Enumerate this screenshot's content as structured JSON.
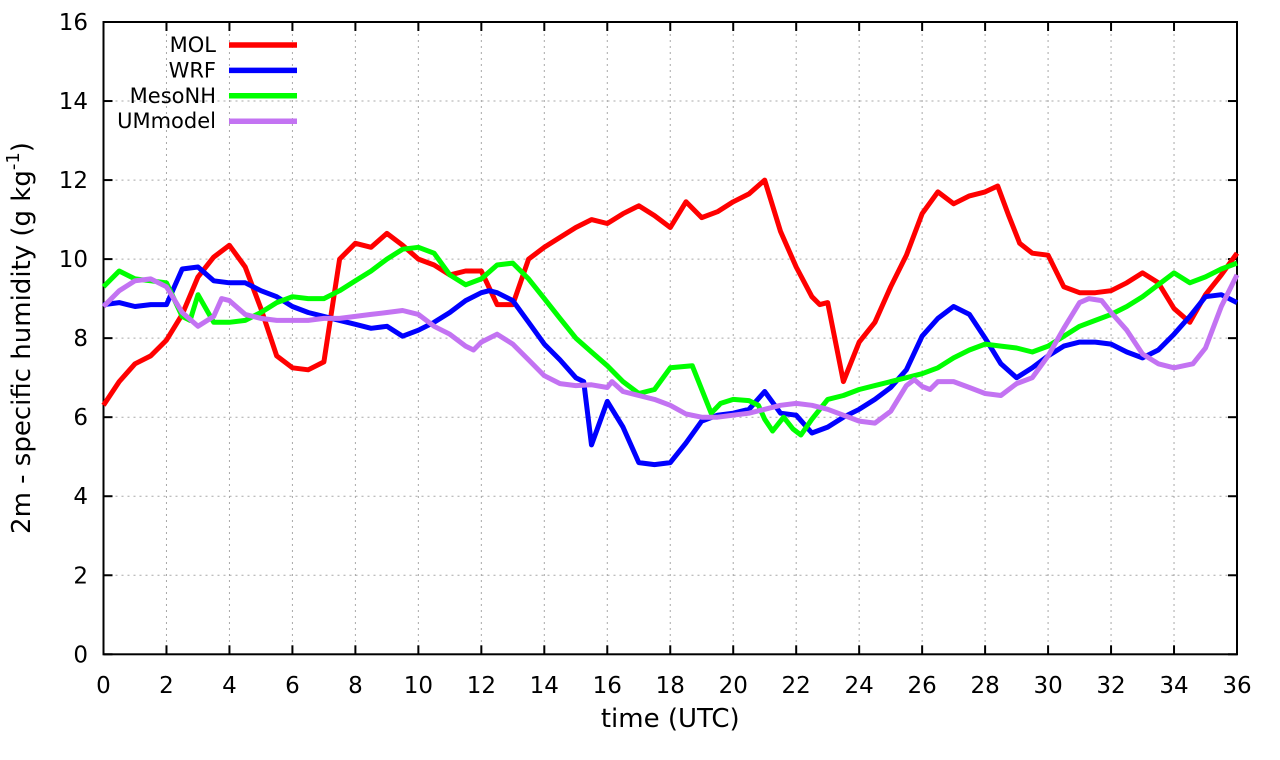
{
  "figure": {
    "background": "#ffffff",
    "border_color": "#000000",
    "grid_color": "#a8a8a8"
  },
  "chart_data": {
    "type": "line",
    "title": "",
    "xlabel": "time (UTC)",
    "ylabel_pre": "2m - specific humidity (g kg",
    "ylabel_sup": "-1",
    "ylabel_post": ")",
    "x_axis": {
      "min": 0,
      "max": 36,
      "tick_step": 2,
      "tick_labels": [
        "0",
        "2",
        "4",
        "6",
        "8",
        "10",
        "12",
        "14",
        "16",
        "18",
        "20",
        "22",
        "24",
        "26",
        "28",
        "30",
        "32",
        "34",
        "36"
      ]
    },
    "y_axis": {
      "min": 0,
      "max": 16,
      "tick_step": 2,
      "tick_labels": [
        "0",
        "2",
        "4",
        "6",
        "8",
        "10",
        "12",
        "14",
        "16"
      ]
    },
    "grid": true,
    "legend_position": "top-left-inside",
    "series": [
      {
        "name": "MOL",
        "color": "#ff0000",
        "points": [
          [
            0,
            6.3
          ],
          [
            0.5,
            6.9
          ],
          [
            1,
            7.35
          ],
          [
            1.5,
            7.55
          ],
          [
            2,
            7.95
          ],
          [
            2.5,
            8.6
          ],
          [
            3,
            9.55
          ],
          [
            3.5,
            10.05
          ],
          [
            4,
            10.35
          ],
          [
            4.5,
            9.8
          ],
          [
            5,
            8.75
          ],
          [
            5.5,
            7.55
          ],
          [
            6,
            7.25
          ],
          [
            6.5,
            7.2
          ],
          [
            7,
            7.4
          ],
          [
            7.5,
            10.0
          ],
          [
            8,
            10.4
          ],
          [
            8.5,
            10.3
          ],
          [
            9,
            10.65
          ],
          [
            9.5,
            10.35
          ],
          [
            10,
            10.0
          ],
          [
            10.5,
            9.85
          ],
          [
            11,
            9.6
          ],
          [
            11.5,
            9.7
          ],
          [
            12,
            9.7
          ],
          [
            12.5,
            8.85
          ],
          [
            13,
            8.85
          ],
          [
            13.5,
            10.0
          ],
          [
            14,
            10.3
          ],
          [
            14.5,
            10.55
          ],
          [
            15,
            10.8
          ],
          [
            15.5,
            11.0
          ],
          [
            16,
            10.9
          ],
          [
            16.5,
            11.15
          ],
          [
            17,
            11.35
          ],
          [
            17.5,
            11.1
          ],
          [
            18,
            10.8
          ],
          [
            18.5,
            11.45
          ],
          [
            19,
            11.05
          ],
          [
            19.5,
            11.2
          ],
          [
            20,
            11.45
          ],
          [
            20.5,
            11.65
          ],
          [
            21,
            12.0
          ],
          [
            21.5,
            10.7
          ],
          [
            22,
            9.8
          ],
          [
            22.5,
            9.05
          ],
          [
            22.75,
            8.85
          ],
          [
            23,
            8.9
          ],
          [
            23.5,
            6.9
          ],
          [
            24,
            7.9
          ],
          [
            24.5,
            8.4
          ],
          [
            25,
            9.3
          ],
          [
            25.5,
            10.1
          ],
          [
            26,
            11.15
          ],
          [
            26.5,
            11.7
          ],
          [
            27,
            11.4
          ],
          [
            27.5,
            11.6
          ],
          [
            28,
            11.7
          ],
          [
            28.4,
            11.85
          ],
          [
            28.75,
            11.1
          ],
          [
            29.1,
            10.4
          ],
          [
            29.5,
            10.15
          ],
          [
            30,
            10.1
          ],
          [
            30.5,
            9.3
          ],
          [
            31,
            9.15
          ],
          [
            31.5,
            9.15
          ],
          [
            32,
            9.2
          ],
          [
            32.5,
            9.4
          ],
          [
            33,
            9.65
          ],
          [
            33.5,
            9.4
          ],
          [
            34,
            8.75
          ],
          [
            34.5,
            8.4
          ],
          [
            35,
            9.1
          ],
          [
            35.5,
            9.6
          ],
          [
            36,
            10.15
          ]
        ]
      },
      {
        "name": "WRF",
        "color": "#0000ff",
        "points": [
          [
            0,
            8.85
          ],
          [
            0.5,
            8.9
          ],
          [
            1,
            8.8
          ],
          [
            1.5,
            8.85
          ],
          [
            2,
            8.85
          ],
          [
            2.5,
            9.75
          ],
          [
            3,
            9.8
          ],
          [
            3.5,
            9.45
          ],
          [
            4,
            9.4
          ],
          [
            4.5,
            9.4
          ],
          [
            5,
            9.2
          ],
          [
            5.5,
            9.05
          ],
          [
            6,
            8.8
          ],
          [
            6.5,
            8.65
          ],
          [
            7,
            8.55
          ],
          [
            7.5,
            8.45
          ],
          [
            8,
            8.35
          ],
          [
            8.5,
            8.25
          ],
          [
            9,
            8.3
          ],
          [
            9.5,
            8.05
          ],
          [
            10,
            8.2
          ],
          [
            10.5,
            8.4
          ],
          [
            11,
            8.65
          ],
          [
            11.5,
            8.95
          ],
          [
            12,
            9.15
          ],
          [
            12.25,
            9.2
          ],
          [
            12.5,
            9.15
          ],
          [
            13,
            8.95
          ],
          [
            13.5,
            8.4
          ],
          [
            14,
            7.85
          ],
          [
            14.5,
            7.45
          ],
          [
            15,
            7.0
          ],
          [
            15.25,
            6.9
          ],
          [
            15.5,
            5.3
          ],
          [
            16,
            6.4
          ],
          [
            16.5,
            5.75
          ],
          [
            17,
            4.85
          ],
          [
            17.5,
            4.8
          ],
          [
            18,
            4.85
          ],
          [
            18.5,
            5.35
          ],
          [
            19,
            5.9
          ],
          [
            19.5,
            6.05
          ],
          [
            20,
            6.1
          ],
          [
            20.5,
            6.2
          ],
          [
            21,
            6.65
          ],
          [
            21.5,
            6.1
          ],
          [
            22,
            6.05
          ],
          [
            22.5,
            5.6
          ],
          [
            23,
            5.75
          ],
          [
            23.5,
            6.0
          ],
          [
            24,
            6.2
          ],
          [
            24.5,
            6.45
          ],
          [
            25,
            6.75
          ],
          [
            25.5,
            7.2
          ],
          [
            26,
            8.05
          ],
          [
            26.5,
            8.5
          ],
          [
            27,
            8.8
          ],
          [
            27.5,
            8.6
          ],
          [
            28,
            8.0
          ],
          [
            28.5,
            7.35
          ],
          [
            29,
            7.0
          ],
          [
            29.5,
            7.25
          ],
          [
            30,
            7.55
          ],
          [
            30.5,
            7.8
          ],
          [
            31,
            7.9
          ],
          [
            31.5,
            7.9
          ],
          [
            32,
            7.85
          ],
          [
            32.5,
            7.65
          ],
          [
            33,
            7.5
          ],
          [
            33.5,
            7.7
          ],
          [
            34,
            8.1
          ],
          [
            34.5,
            8.55
          ],
          [
            35,
            9.05
          ],
          [
            35.5,
            9.1
          ],
          [
            36,
            8.9
          ]
        ]
      },
      {
        "name": "MesoNH",
        "color": "#00ff00",
        "points": [
          [
            0,
            9.3
          ],
          [
            0.5,
            9.7
          ],
          [
            1,
            9.5
          ],
          [
            1.5,
            9.45
          ],
          [
            2,
            9.4
          ],
          [
            2.5,
            8.55
          ],
          [
            2.75,
            8.45
          ],
          [
            3,
            9.1
          ],
          [
            3.5,
            8.4
          ],
          [
            4,
            8.4
          ],
          [
            4.5,
            8.45
          ],
          [
            5,
            8.65
          ],
          [
            5.5,
            8.9
          ],
          [
            6,
            9.05
          ],
          [
            6.5,
            9.0
          ],
          [
            7,
            9.0
          ],
          [
            7.5,
            9.2
          ],
          [
            8,
            9.45
          ],
          [
            8.5,
            9.7
          ],
          [
            9,
            10.0
          ],
          [
            9.5,
            10.25
          ],
          [
            10,
            10.3
          ],
          [
            10.5,
            10.15
          ],
          [
            11,
            9.6
          ],
          [
            11.5,
            9.35
          ],
          [
            12,
            9.5
          ],
          [
            12.5,
            9.85
          ],
          [
            13,
            9.9
          ],
          [
            13.5,
            9.5
          ],
          [
            14,
            9.0
          ],
          [
            14.5,
            8.5
          ],
          [
            15,
            8.0
          ],
          [
            15.5,
            7.65
          ],
          [
            16,
            7.3
          ],
          [
            16.5,
            6.9
          ],
          [
            17,
            6.6
          ],
          [
            17.5,
            6.7
          ],
          [
            18,
            7.25
          ],
          [
            18.7,
            7.3
          ],
          [
            19.3,
            6.1
          ],
          [
            19.6,
            6.35
          ],
          [
            20,
            6.45
          ],
          [
            20.5,
            6.42
          ],
          [
            20.8,
            6.3
          ],
          [
            21,
            5.95
          ],
          [
            21.25,
            5.65
          ],
          [
            21.6,
            6.0
          ],
          [
            21.9,
            5.7
          ],
          [
            22.15,
            5.55
          ],
          [
            22.5,
            5.95
          ],
          [
            23,
            6.45
          ],
          [
            23.5,
            6.55
          ],
          [
            24,
            6.7
          ],
          [
            24.5,
            6.8
          ],
          [
            25,
            6.9
          ],
          [
            25.5,
            7.0
          ],
          [
            26,
            7.1
          ],
          [
            26.5,
            7.25
          ],
          [
            27,
            7.5
          ],
          [
            27.5,
            7.7
          ],
          [
            28,
            7.85
          ],
          [
            28.5,
            7.8
          ],
          [
            29,
            7.75
          ],
          [
            29.5,
            7.65
          ],
          [
            30,
            7.8
          ],
          [
            30.5,
            8.05
          ],
          [
            31,
            8.3
          ],
          [
            31.5,
            8.45
          ],
          [
            32,
            8.6
          ],
          [
            32.5,
            8.8
          ],
          [
            33,
            9.05
          ],
          [
            33.5,
            9.35
          ],
          [
            34,
            9.65
          ],
          [
            34.5,
            9.4
          ],
          [
            35,
            9.55
          ],
          [
            35.5,
            9.75
          ],
          [
            36,
            9.9
          ]
        ]
      },
      {
        "name": "UMmodel",
        "color": "#c373f2",
        "points": [
          [
            0,
            8.8
          ],
          [
            0.5,
            9.2
          ],
          [
            1,
            9.45
          ],
          [
            1.5,
            9.5
          ],
          [
            2,
            9.3
          ],
          [
            2.5,
            8.65
          ],
          [
            3,
            8.3
          ],
          [
            3.5,
            8.55
          ],
          [
            3.75,
            9.0
          ],
          [
            4,
            8.95
          ],
          [
            4.5,
            8.6
          ],
          [
            5,
            8.5
          ],
          [
            5.5,
            8.45
          ],
          [
            6,
            8.45
          ],
          [
            6.5,
            8.45
          ],
          [
            7,
            8.5
          ],
          [
            7.5,
            8.5
          ],
          [
            8,
            8.55
          ],
          [
            8.5,
            8.6
          ],
          [
            9,
            8.65
          ],
          [
            9.5,
            8.7
          ],
          [
            10,
            8.6
          ],
          [
            10.5,
            8.3
          ],
          [
            11,
            8.1
          ],
          [
            11.5,
            7.8
          ],
          [
            11.75,
            7.7
          ],
          [
            12,
            7.9
          ],
          [
            12.5,
            8.1
          ],
          [
            13,
            7.85
          ],
          [
            13.5,
            7.45
          ],
          [
            14,
            7.05
          ],
          [
            14.5,
            6.85
          ],
          [
            15,
            6.8
          ],
          [
            15.5,
            6.82
          ],
          [
            16,
            6.75
          ],
          [
            16.15,
            6.9
          ],
          [
            16.5,
            6.65
          ],
          [
            17,
            6.55
          ],
          [
            17.5,
            6.45
          ],
          [
            18,
            6.3
          ],
          [
            18.5,
            6.08
          ],
          [
            19,
            6.0
          ],
          [
            19.5,
            6.0
          ],
          [
            20,
            6.05
          ],
          [
            20.5,
            6.1
          ],
          [
            21,
            6.2
          ],
          [
            21.5,
            6.3
          ],
          [
            22,
            6.35
          ],
          [
            22.5,
            6.3
          ],
          [
            23,
            6.2
          ],
          [
            23.5,
            6.05
          ],
          [
            24,
            5.9
          ],
          [
            24.5,
            5.85
          ],
          [
            25,
            6.15
          ],
          [
            25.5,
            6.8
          ],
          [
            25.75,
            6.95
          ],
          [
            26,
            6.78
          ],
          [
            26.25,
            6.7
          ],
          [
            26.5,
            6.9
          ],
          [
            27,
            6.9
          ],
          [
            27.5,
            6.75
          ],
          [
            28,
            6.6
          ],
          [
            28.5,
            6.55
          ],
          [
            29,
            6.85
          ],
          [
            29.5,
            7.0
          ],
          [
            30,
            7.55
          ],
          [
            30.5,
            8.25
          ],
          [
            31,
            8.9
          ],
          [
            31.3,
            9.0
          ],
          [
            31.7,
            8.95
          ],
          [
            32,
            8.65
          ],
          [
            32.5,
            8.2
          ],
          [
            33,
            7.6
          ],
          [
            33.5,
            7.35
          ],
          [
            34,
            7.25
          ],
          [
            34.6,
            7.35
          ],
          [
            35,
            7.75
          ],
          [
            35.5,
            8.8
          ],
          [
            36,
            9.6
          ]
        ]
      }
    ]
  }
}
